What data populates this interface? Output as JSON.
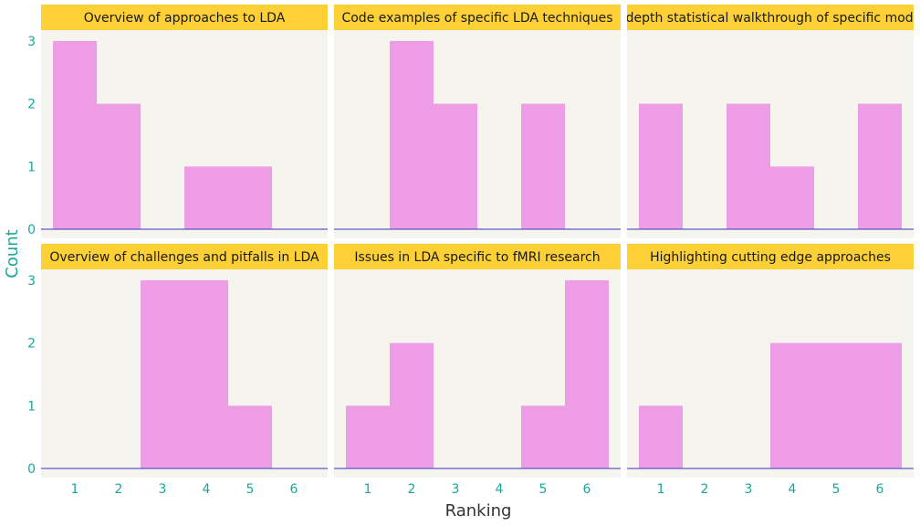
{
  "colors": {
    "bar": "#ee9de5",
    "panel_bg": "#f5f4ee",
    "strip_bg": "#fdd036",
    "baseline": "#5a5ac8",
    "tick_text": "#1aa79a",
    "axis_title_y": "#1aa79a",
    "axis_title_x": "#333333"
  },
  "chart_data": {
    "type": "bar",
    "subtype": "faceted-histogram",
    "xlabel": "Ranking",
    "ylabel": "Count",
    "x_ticks": [
      1,
      2,
      3,
      4,
      5,
      6
    ],
    "y_ticks": [
      0,
      1,
      2,
      3
    ],
    "ylim": [
      0,
      3
    ],
    "grid": false,
    "panels": [
      {
        "title": "Overview of approaches to  LDA",
        "x": [
          1,
          2,
          3,
          4,
          5,
          6
        ],
        "values": [
          3,
          2,
          0,
          1,
          1,
          0
        ]
      },
      {
        "title": "Code examples of specific  LDA techniques",
        "x": [
          1,
          2,
          3,
          4,
          5,
          6
        ],
        "values": [
          0,
          3,
          2,
          0,
          2,
          0
        ]
      },
      {
        "title": "In-depth statistical walkthrough of specific models",
        "x": [
          1,
          2,
          3,
          4,
          5,
          6
        ],
        "values": [
          2,
          0,
          2,
          1,
          0,
          2
        ]
      },
      {
        "title": "Overview of challenges and pitfalls in  LDA",
        "x": [
          1,
          2,
          3,
          4,
          5,
          6
        ],
        "values": [
          0,
          0,
          3,
          3,
          1,
          0
        ]
      },
      {
        "title": "Issues in  LDA specific to fMRI research",
        "x": [
          1,
          2,
          3,
          4,
          5,
          6
        ],
        "values": [
          1,
          2,
          0,
          0,
          1,
          3
        ]
      },
      {
        "title": "Highlighting cutting edge approaches",
        "x": [
          1,
          2,
          3,
          4,
          5,
          6
        ],
        "values": [
          1,
          0,
          0,
          2,
          2,
          2
        ]
      }
    ]
  }
}
